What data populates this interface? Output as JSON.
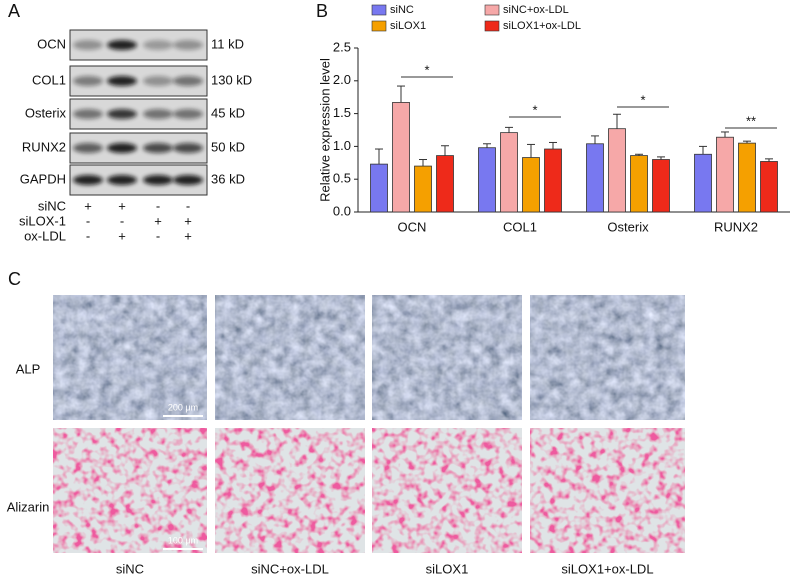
{
  "panel_labels": [
    "A",
    "B",
    "C"
  ],
  "blot": {
    "rows": [
      {
        "protein": "OCN",
        "size": "11 kD"
      },
      {
        "protein": "COL1",
        "size": "130 kD"
      },
      {
        "protein": "Osterix",
        "size": "45 kD"
      },
      {
        "protein": "RUNX2",
        "size": "50 kD"
      },
      {
        "protein": "GAPDH",
        "size": "36 kD"
      }
    ],
    "treatments": [
      {
        "name": "siNC",
        "signs": [
          "+",
          "+",
          "-",
          "-"
        ]
      },
      {
        "name": "siLOX-1",
        "signs": [
          "-",
          "-",
          "+",
          "+"
        ]
      },
      {
        "name": "ox-LDL",
        "signs": [
          "-",
          "+",
          "-",
          "+"
        ]
      }
    ]
  },
  "chart_data": {
    "type": "bar",
    "y_label": "Relative expression level",
    "categories": [
      "OCN",
      "COL1",
      "Osterix",
      "RUNX2"
    ],
    "series": [
      {
        "name": "siNC",
        "color": "#7878f0",
        "values": [
          0.73,
          0.98,
          1.04,
          0.88
        ],
        "errors": [
          0.23,
          0.06,
          0.12,
          0.12
        ]
      },
      {
        "name": "siNC+ox-LDL",
        "color": "#f6a8a8",
        "values": [
          1.67,
          1.21,
          1.27,
          1.14
        ],
        "errors": [
          0.25,
          0.08,
          0.22,
          0.08
        ]
      },
      {
        "name": "siLOX1",
        "color": "#f5a000",
        "values": [
          0.7,
          0.83,
          0.86,
          1.05
        ],
        "errors": [
          0.1,
          0.2,
          0.02,
          0.03
        ]
      },
      {
        "name": "siLOX1+ox-LDL",
        "color": "#ee2a1a",
        "values": [
          0.86,
          0.96,
          0.8,
          0.77
        ],
        "errors": [
          0.15,
          0.1,
          0.04,
          0.04
        ]
      }
    ],
    "ylim": [
      0,
      2.5
    ],
    "yticks": [
      {
        "value": 0,
        "label": "0.0"
      },
      0.5,
      {
        "value": 1,
        "label": "1.0"
      },
      1.5,
      {
        "value": 2,
        "label": "2.0"
      },
      2.5
    ],
    "significance": [
      "*",
      "*",
      "*",
      "**"
    ],
    "legend": "top"
  },
  "micrographs": {
    "rows": [
      "ALP",
      "Alizarin"
    ],
    "columns": [
      "siNC",
      "siNC+ox-LDL",
      "siLOX1",
      "siLOX1+ox-LDL"
    ],
    "scale_bars": [
      "200 μm",
      "100 μm"
    ]
  }
}
